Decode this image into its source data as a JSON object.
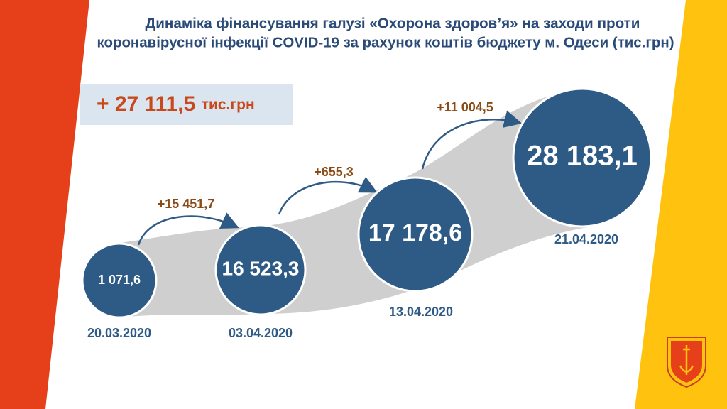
{
  "title": [
    "Динаміка фінансування галузі «Охорона здоров’я» на заходи проти",
    "коронавірусної інфекції COVID-19 за рахунок коштів бюджету м. Одеси  (тис.грн)"
  ],
  "total": {
    "value": "+ 27 111,5",
    "unit": "тис.грн"
  },
  "nodes": [
    {
      "value": "1 071,6",
      "date": "20.03.2020"
    },
    {
      "value": "16 523,3",
      "date": "03.04.2020"
    },
    {
      "value": "17 178,6",
      "date": "13.04.2020"
    },
    {
      "value": "28 183,1",
      "date": "21.04.2020"
    }
  ],
  "increments": [
    "+15 451,7",
    "+655,3",
    "+11 004,5"
  ]
}
